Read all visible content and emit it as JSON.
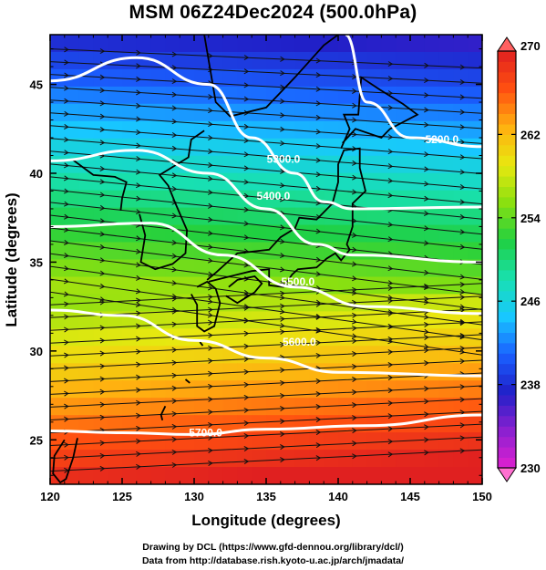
{
  "title": "MSM 06Z24Dec2024 (500.0hPa)",
  "credits": {
    "line1": "Drawing by DCL (https://www.gfd-dennou.org/library/dcl/)",
    "line2": "Data from http://database.rish.kyoto-u.ac.jp/arch/jmadata/"
  },
  "chart_data": {
    "type": "heatmap",
    "description_layers": [
      "temperature shading",
      "geopotential height contours",
      "wind streamlines",
      "coastlines"
    ],
    "xlabel": "Longitude (degrees)",
    "ylabel": "Latitude  (degrees)",
    "xlim": [
      120,
      150
    ],
    "ylim": [
      22.5,
      47.8
    ],
    "x_ticks": [
      120,
      125,
      130,
      135,
      140,
      145,
      150
    ],
    "y_ticks": [
      25,
      30,
      35,
      40,
      45
    ],
    "x_tick_labels": [
      "120",
      "125",
      "130",
      "135",
      "140",
      "145",
      "150"
    ],
    "y_tick_labels": [
      "25",
      "30",
      "35",
      "40",
      "45"
    ],
    "colorbar": {
      "min": 230,
      "max": 270,
      "tick_values": [
        230,
        238,
        246,
        254,
        262,
        270
      ],
      "tick_labels": [
        "230",
        "238",
        "246",
        "254",
        "262",
        "270"
      ],
      "colors": [
        "#e020d0",
        "#8a20d0",
        "#2020c8",
        "#1a60ff",
        "#18c8ff",
        "#18e0b0",
        "#20d040",
        "#8ae010",
        "#e8e810",
        "#ffb010",
        "#ff5010",
        "#e02020"
      ]
    },
    "contours": [
      {
        "label": "5200.0",
        "level": 5200,
        "points": [
          [
            140.5,
            47.8
          ],
          [
            142,
            44
          ],
          [
            145,
            42
          ],
          [
            150,
            41.5
          ]
        ]
      },
      {
        "label": "5300.0",
        "level": 5300,
        "points": [
          [
            120,
            45.2
          ],
          [
            126,
            46.5
          ],
          [
            131,
            45
          ],
          [
            134,
            42
          ],
          [
            137,
            40
          ],
          [
            139,
            38.4
          ],
          [
            141,
            38
          ],
          [
            150,
            38.1
          ]
        ]
      },
      {
        "label": "5400.0",
        "level": 5400,
        "points": [
          [
            120,
            40.7
          ],
          [
            126,
            41.3
          ],
          [
            131,
            40
          ],
          [
            135,
            38
          ],
          [
            138.5,
            36
          ],
          [
            141,
            35.4
          ],
          [
            150,
            35
          ]
        ]
      },
      {
        "label": "5500.0",
        "level": 5500,
        "points": [
          [
            120,
            37
          ],
          [
            127,
            37.2
          ],
          [
            132,
            35.4
          ],
          [
            137,
            33.6
          ],
          [
            142,
            32.5
          ],
          [
            150,
            32.1
          ]
        ]
      },
      {
        "label": "5600.0",
        "level": 5600,
        "points": [
          [
            120,
            32.3
          ],
          [
            125,
            32
          ],
          [
            130,
            30.6
          ],
          [
            135,
            29.6
          ],
          [
            140,
            28.8
          ],
          [
            150,
            28.6
          ]
        ]
      },
      {
        "label": "5700.0",
        "level": 5700,
        "points": [
          [
            120,
            25.5
          ],
          [
            125,
            25.4
          ],
          [
            130,
            25.3
          ],
          [
            135,
            25.6
          ],
          [
            142,
            25.8
          ],
          [
            150,
            26.4
          ]
        ]
      }
    ],
    "contour_label_positions": [
      {
        "label": "5200.0",
        "x": 147.2,
        "y": 41.7
      },
      {
        "label": "5300.0",
        "x": 136.2,
        "y": 40.6
      },
      {
        "label": "5400.0",
        "x": 135.5,
        "y": 38.5
      },
      {
        "label": "5500.0",
        "x": 137.2,
        "y": 33.7
      },
      {
        "label": "5600.0",
        "x": 137.3,
        "y": 30.3
      },
      {
        "label": "5700.0",
        "x": 130.8,
        "y": 25.2
      }
    ]
  }
}
